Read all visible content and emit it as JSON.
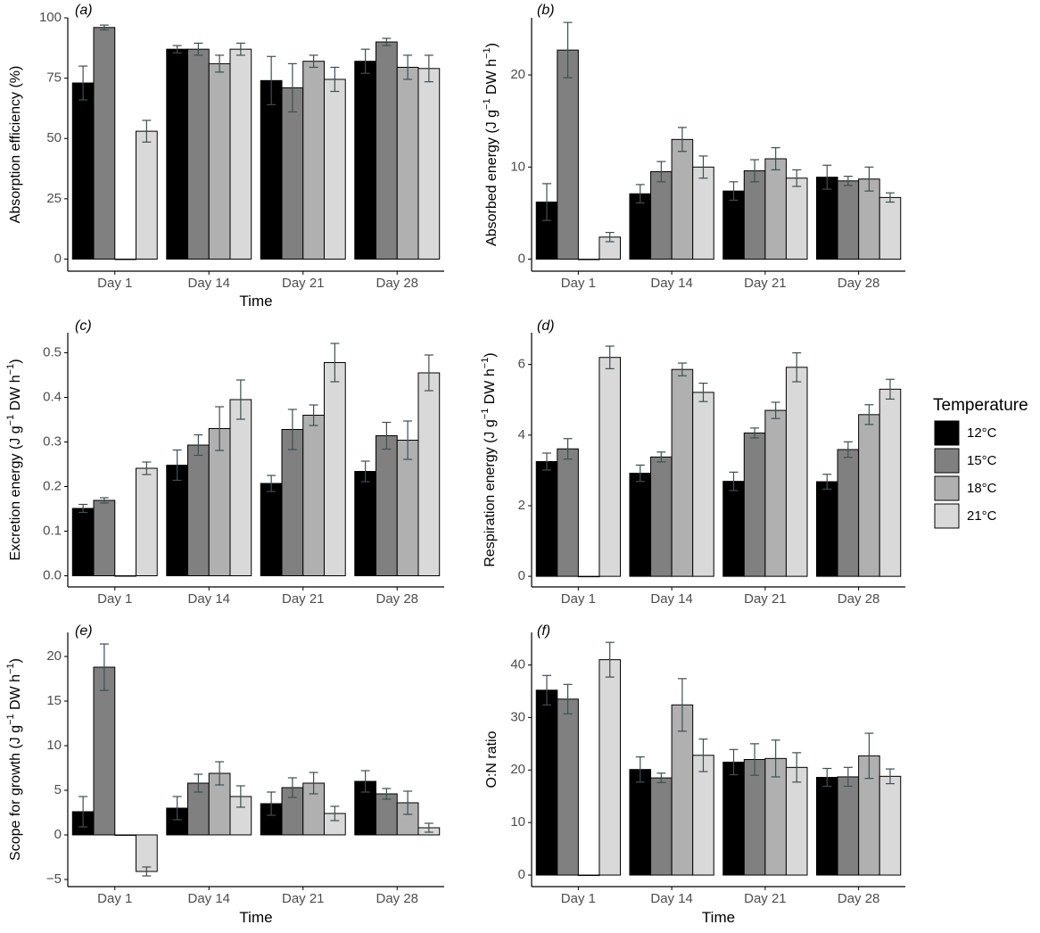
{
  "colors": {
    "c12": "#000000",
    "c15": "#808080",
    "c18": "#b0b0b0",
    "c21": "#d9d9d9",
    "errorbar": "#3e4f52",
    "axis": "#000000",
    "tick_text": "#4d4d4d"
  },
  "legend": {
    "title": "Temperature",
    "entries": [
      "12°C",
      "15°C",
      "18°C",
      "21°C"
    ]
  },
  "chart_data": [
    {
      "panel": "(a)",
      "type": "bar",
      "categories": [
        "Day 1",
        "Day 14",
        "Day 21",
        "Day 28"
      ],
      "series": [
        {
          "name": "12°C",
          "values": [
            73,
            87,
            74,
            82
          ],
          "errors": [
            7,
            1.5,
            10,
            5
          ]
        },
        {
          "name": "15°C",
          "values": [
            96,
            87,
            71,
            90
          ],
          "errors": [
            1,
            2.5,
            10,
            1.5
          ]
        },
        {
          "name": "18°C",
          "values": [
            0,
            81,
            82,
            79.5
          ],
          "errors": [
            0,
            3.5,
            2.5,
            5
          ]
        },
        {
          "name": "21°C",
          "values": [
            53,
            87,
            74.5,
            79
          ],
          "errors": [
            4.5,
            2.5,
            5,
            5.5
          ]
        }
      ],
      "ylabel": "Absorption efficiency (%)",
      "xlabel": "Time",
      "ylim": [
        -5,
        100
      ],
      "yticks": [
        "0",
        "25",
        "50",
        "75",
        "100"
      ]
    },
    {
      "panel": "(b)",
      "type": "bar",
      "categories": [
        "Day 1",
        "Day 14",
        "Day 21",
        "Day 28"
      ],
      "series": [
        {
          "name": "12°C",
          "values": [
            6.2,
            7.1,
            7.4,
            8.9
          ],
          "errors": [
            2.0,
            1.0,
            1.0,
            1.3
          ]
        },
        {
          "name": "15°C",
          "values": [
            22.7,
            9.5,
            9.6,
            8.5
          ],
          "errors": [
            3.0,
            1.1,
            1.2,
            0.5
          ]
        },
        {
          "name": "18°C",
          "values": [
            0,
            13.0,
            10.9,
            8.7
          ],
          "errors": [
            0,
            1.3,
            1.2,
            1.3
          ]
        },
        {
          "name": "21°C",
          "values": [
            2.4,
            10.0,
            8.8,
            6.7
          ],
          "errors": [
            0.5,
            1.2,
            0.9,
            0.5
          ]
        }
      ],
      "ylabel": "Absorbed energy (J g⁻¹ DW h⁻¹)",
      "xlabel": "",
      "ylim": [
        -1.3,
        26.2
      ],
      "yticks": [
        "0",
        "10",
        "20"
      ]
    },
    {
      "panel": "(c)",
      "type": "bar",
      "categories": [
        "Day 1",
        "Day 14",
        "Day 21",
        "Day 28"
      ],
      "series": [
        {
          "name": "12°C",
          "values": [
            0.151,
            0.248,
            0.207,
            0.234
          ],
          "errors": [
            0.009,
            0.034,
            0.018,
            0.023
          ]
        },
        {
          "name": "15°C",
          "values": [
            0.169,
            0.293,
            0.328,
            0.314
          ],
          "errors": [
            0.006,
            0.023,
            0.045,
            0.03
          ]
        },
        {
          "name": "18°C",
          "values": [
            0,
            0.33,
            0.36,
            0.304
          ],
          "errors": [
            0,
            0.049,
            0.023,
            0.043
          ]
        },
        {
          "name": "21°C",
          "values": [
            0.241,
            0.395,
            0.478,
            0.455
          ],
          "errors": [
            0.014,
            0.044,
            0.043,
            0.04
          ]
        }
      ],
      "ylabel": "Excretion energy (J g⁻¹ DW h⁻¹)",
      "xlabel": "",
      "ylim": [
        -0.025,
        0.545
      ],
      "yticks": [
        "0.0",
        "0.1",
        "0.2",
        "0.3",
        "0.4",
        "0.5"
      ]
    },
    {
      "panel": "(d)",
      "type": "bar",
      "categories": [
        "Day 1",
        "Day 14",
        "Day 21",
        "Day 28"
      ],
      "series": [
        {
          "name": "12°C",
          "values": [
            3.25,
            2.92,
            2.69,
            2.68
          ],
          "errors": [
            0.24,
            0.23,
            0.26,
            0.21
          ]
        },
        {
          "name": "15°C",
          "values": [
            3.61,
            3.38,
            4.06,
            3.59
          ],
          "errors": [
            0.29,
            0.14,
            0.14,
            0.22
          ]
        },
        {
          "name": "18°C",
          "values": [
            0,
            5.86,
            4.7,
            4.58
          ],
          "errors": [
            0,
            0.18,
            0.23,
            0.28
          ]
        },
        {
          "name": "21°C",
          "values": [
            6.2,
            5.21,
            5.92,
            5.3
          ],
          "errors": [
            0.32,
            0.26,
            0.41,
            0.28
          ]
        }
      ],
      "ylabel": "Respiration energy (J g⁻¹ DW h⁻¹)",
      "xlabel": "",
      "ylim": [
        -0.3,
        6.9
      ],
      "yticks": [
        "0",
        "2",
        "4",
        "6"
      ]
    },
    {
      "panel": "(e)",
      "type": "bar",
      "categories": [
        "Day 1",
        "Day 14",
        "Day 21",
        "Day 28"
      ],
      "series": [
        {
          "name": "12°C",
          "values": [
            2.6,
            3.0,
            3.5,
            6.0
          ],
          "errors": [
            1.7,
            1.3,
            1.3,
            1.2
          ]
        },
        {
          "name": "15°C",
          "values": [
            18.8,
            5.8,
            5.3,
            4.6
          ],
          "errors": [
            2.6,
            1.0,
            1.1,
            0.6
          ]
        },
        {
          "name": "18°C",
          "values": [
            0,
            6.9,
            5.8,
            3.6
          ],
          "errors": [
            0,
            1.3,
            1.2,
            1.3
          ]
        },
        {
          "name": "21°C",
          "values": [
            -4.1,
            4.3,
            2.4,
            0.8
          ],
          "errors": [
            0.5,
            1.2,
            0.8,
            0.5
          ]
        }
      ],
      "ylabel": "Scope for growth (J g⁻¹ DW h⁻¹)",
      "xlabel": "Time",
      "ylim": [
        -5.8,
        22.7
      ],
      "yticks": [
        "−5",
        "0",
        "5",
        "10",
        "15",
        "20"
      ]
    },
    {
      "panel": "(f)",
      "type": "bar",
      "categories": [
        "Day 1",
        "Day 14",
        "Day 21",
        "Day 28"
      ],
      "series": [
        {
          "name": "12°C",
          "values": [
            35.2,
            20.1,
            21.5,
            18.6
          ],
          "errors": [
            2.8,
            2.4,
            2.4,
            1.7
          ]
        },
        {
          "name": "15°C",
          "values": [
            33.5,
            18.5,
            22.0,
            18.7
          ],
          "errors": [
            2.8,
            0.9,
            3.0,
            1.8
          ]
        },
        {
          "name": "18°C",
          "values": [
            0,
            32.4,
            22.2,
            22.7
          ],
          "errors": [
            0,
            5.0,
            3.5,
            4.3
          ]
        },
        {
          "name": "21°C",
          "values": [
            41.0,
            22.8,
            20.5,
            18.8
          ],
          "errors": [
            3.3,
            3.1,
            2.8,
            1.4
          ]
        }
      ],
      "ylabel": "O:N ratio",
      "xlabel": "Time",
      "ylim": [
        -2.2,
        46.2
      ],
      "yticks": [
        "0",
        "10",
        "20",
        "30",
        "40"
      ]
    }
  ]
}
